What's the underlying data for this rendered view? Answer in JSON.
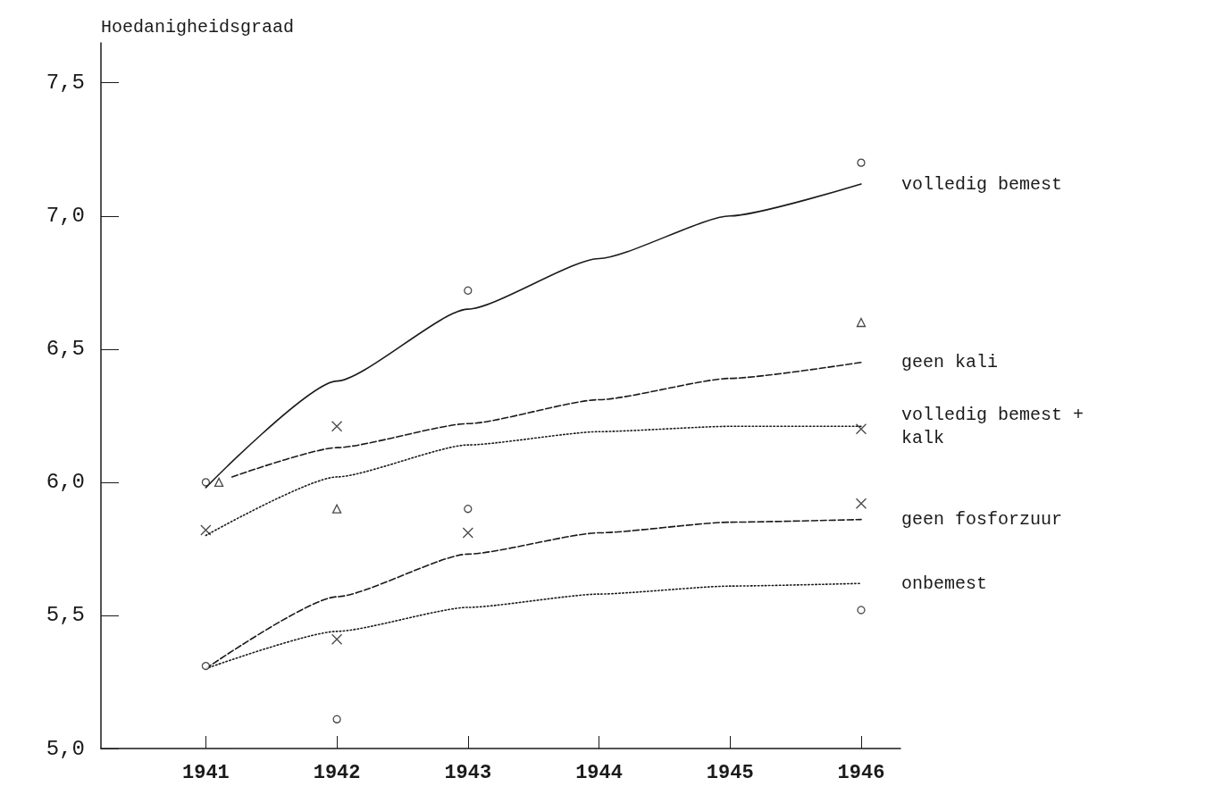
{
  "chart_data": {
    "type": "line",
    "ylabel": "Hoedanigheidsgraad",
    "xlim": [
      1940.2,
      1946.3
    ],
    "xticks": [
      1941,
      1942,
      1943,
      1944,
      1945,
      1946
    ],
    "ylim": [
      5,
      7.65
    ],
    "yticks": [
      {
        "value": 5,
        "label": "5,0"
      },
      {
        "value": 5.5,
        "label": "5,5"
      },
      {
        "value": 6,
        "label": "6,0"
      },
      {
        "value": 6.5,
        "label": "6,5"
      },
      {
        "value": 7,
        "label": "7,0"
      },
      {
        "value": 7.5,
        "label": "7,5"
      }
    ],
    "series": [
      {
        "name": "volledig bemest",
        "line_style": "solid",
        "marker": "none",
        "color": "#1a1a1a",
        "x": [
          1941,
          1942,
          1943,
          1944,
          1945,
          1946
        ],
        "values": [
          5.98,
          6.38,
          6.65,
          6.84,
          7.0,
          7.12
        ]
      },
      {
        "name": "geen kali",
        "line_style": "dashed",
        "marker": "none",
        "color": "#1a1a1a",
        "x": [
          1941.2,
          1942,
          1943,
          1944,
          1945,
          1946
        ],
        "values": [
          6.02,
          6.13,
          6.22,
          6.31,
          6.39,
          6.45
        ]
      },
      {
        "name": "volledig bemest + kalk",
        "line_style": "dotted",
        "marker": "none",
        "color": "#1a1a1a",
        "x": [
          1941,
          1942,
          1943,
          1944,
          1945,
          1946
        ],
        "values": [
          5.8,
          6.02,
          6.14,
          6.19,
          6.21,
          6.21
        ]
      },
      {
        "name": "geen fosforzuur",
        "line_style": "dashed",
        "marker": "none",
        "color": "#1a1a1a",
        "x": [
          1941,
          1942,
          1943,
          1944,
          1945,
          1946
        ],
        "values": [
          5.3,
          5.57,
          5.73,
          5.81,
          5.85,
          5.86
        ]
      },
      {
        "name": "onbemest",
        "line_style": "dotted",
        "marker": "none",
        "color": "#1a1a1a",
        "x": [
          1941,
          1942,
          1943,
          1944,
          1945,
          1946
        ],
        "values": [
          5.3,
          5.44,
          5.53,
          5.58,
          5.61,
          5.62
        ]
      },
      {
        "type": "scatter",
        "marker": "circle",
        "color": "#1a1a1a",
        "x": [
          1941,
          1943,
          1946
        ],
        "values": [
          6.0,
          6.72,
          7.2
        ]
      },
      {
        "type": "scatter",
        "marker": "triangle",
        "color": "#1a1a1a",
        "x": [
          1941.1,
          1942,
          1946
        ],
        "values": [
          6.0,
          5.9,
          6.6
        ]
      },
      {
        "type": "scatter",
        "marker": "cross",
        "color": "#1a1a1a",
        "x": [
          1941,
          1942,
          1946
        ],
        "values": [
          5.82,
          6.21,
          6.2
        ]
      },
      {
        "type": "scatter",
        "marker": "cross",
        "color": "#1a1a1a",
        "x": [
          1942,
          1943,
          1946
        ],
        "values": [
          5.41,
          5.81,
          5.92
        ]
      },
      {
        "type": "scatter",
        "marker": "circle",
        "color": "#1a1a1a",
        "x": [
          1941,
          1942,
          1943,
          1946
        ],
        "values": [
          5.31,
          5.11,
          5.9,
          5.52
        ]
      }
    ]
  }
}
